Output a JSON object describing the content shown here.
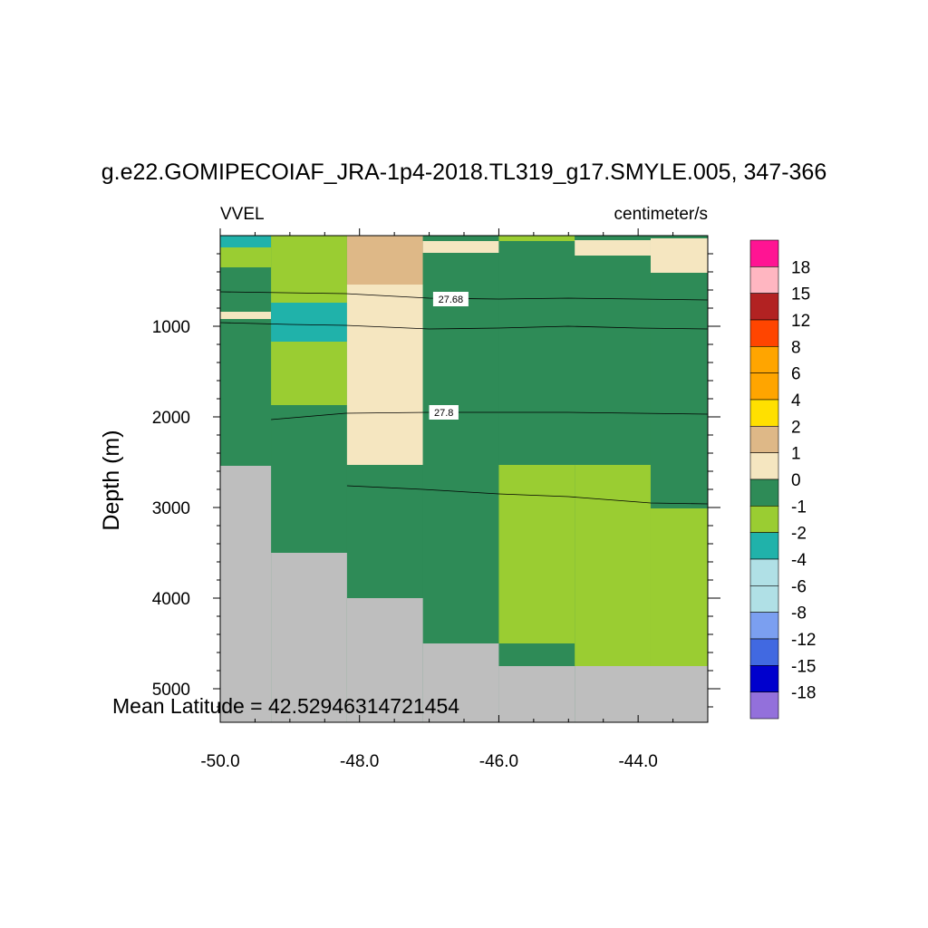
{
  "chart_data": {
    "type": "heatmap",
    "title": "g.e22.GOMIPECOIAF_JRA-1p4-2018.TL319_g17.SMYLE.005, 347-366",
    "left_label": "VVEL",
    "right_label": "centimeter/s",
    "xlabel": "",
    "ylabel": "Depth (m)",
    "xlim": [
      -50.0,
      -43.0
    ],
    "ylim": [
      5370,
      0
    ],
    "x_ticks": [
      "-50.0",
      "-48.0",
      "-46.0",
      "-44.0"
    ],
    "x_tick_values": [
      -50.0,
      -48.0,
      -46.0,
      -44.0
    ],
    "y_ticks": [
      "1000",
      "2000",
      "3000",
      "4000",
      "5000"
    ],
    "y_tick_values": [
      1000,
      2000,
      3000,
      4000,
      5000
    ],
    "colorbar": {
      "labels": [
        "18",
        "15",
        "12",
        "8",
        "6",
        "4",
        "2",
        "1",
        "0",
        "-1",
        "-2",
        "-4",
        "-6",
        "-8",
        "-12",
        "-15",
        "-18"
      ],
      "colors": [
        "#ff1493",
        "#ffb6c1",
        "#b22222",
        "#ff4500",
        "#ffa500",
        "#ffa500",
        "#ffe000",
        "#deb887",
        "#f5e6c0",
        "#2e8b57",
        "#9acd32",
        "#20b2aa",
        "#b0e0e6",
        "#b0e0e6",
        "#7b9ff0",
        "#4169e1",
        "#0000cd",
        "#9370db"
      ]
    },
    "land_color": "#bebebe",
    "cells": [
      {
        "x0": -50.0,
        "x1": -49.27,
        "d0": 0,
        "d1": 130,
        "v": "-2"
      },
      {
        "x0": -50.0,
        "x1": -49.27,
        "d0": 130,
        "d1": 350,
        "v": "-1"
      },
      {
        "x0": -50.0,
        "x1": -49.27,
        "d0": 350,
        "d1": 840,
        "v": "0"
      },
      {
        "x0": -50.0,
        "x1": -49.27,
        "d0": 840,
        "d1": 920,
        "v": "1"
      },
      {
        "x0": -50.0,
        "x1": -49.27,
        "d0": 920,
        "d1": 2540,
        "v": "0"
      },
      {
        "x0": -49.27,
        "x1": -48.18,
        "d0": 0,
        "d1": 740,
        "v": "-1"
      },
      {
        "x0": -49.27,
        "x1": -48.18,
        "d0": 740,
        "d1": 1170,
        "v": "-2"
      },
      {
        "x0": -49.27,
        "x1": -48.18,
        "d0": 1170,
        "d1": 1870,
        "v": "-1"
      },
      {
        "x0": -49.27,
        "x1": -48.18,
        "d0": 1870,
        "d1": 3500,
        "v": "0"
      },
      {
        "x0": -48.18,
        "x1": -47.09,
        "d0": 0,
        "d1": 540,
        "v": "2"
      },
      {
        "x0": -48.18,
        "x1": -47.09,
        "d0": 540,
        "d1": 2530,
        "v": "1"
      },
      {
        "x0": -48.18,
        "x1": -47.09,
        "d0": 2530,
        "d1": 4000,
        "v": "0"
      },
      {
        "x0": -47.09,
        "x1": -46.0,
        "d0": 0,
        "d1": 60,
        "v": "0"
      },
      {
        "x0": -47.09,
        "x1": -46.0,
        "d0": 60,
        "d1": 190,
        "v": "1"
      },
      {
        "x0": -47.09,
        "x1": -46.0,
        "d0": 190,
        "d1": 4500,
        "v": "0"
      },
      {
        "x0": -46.0,
        "x1": -44.91,
        "d0": 0,
        "d1": 60,
        "v": "-1"
      },
      {
        "x0": -46.0,
        "x1": -44.91,
        "d0": 60,
        "d1": 2530,
        "v": "0"
      },
      {
        "x0": -46.0,
        "x1": -44.91,
        "d0": 2530,
        "d1": 4500,
        "v": "-1"
      },
      {
        "x0": -46.0,
        "x1": -44.91,
        "d0": 4500,
        "d1": 4750,
        "v": "0"
      },
      {
        "x0": -44.91,
        "x1": -43.82,
        "d0": 0,
        "d1": 50,
        "v": "0"
      },
      {
        "x0": -44.91,
        "x1": -43.82,
        "d0": 50,
        "d1": 220,
        "v": "1"
      },
      {
        "x0": -44.91,
        "x1": -43.82,
        "d0": 220,
        "d1": 2530,
        "v": "0"
      },
      {
        "x0": -44.91,
        "x1": -43.82,
        "d0": 2530,
        "d1": 4750,
        "v": "-1"
      },
      {
        "x0": -43.82,
        "x1": -43.0,
        "d0": 0,
        "d1": 30,
        "v": "0"
      },
      {
        "x0": -43.82,
        "x1": -43.0,
        "d0": 30,
        "d1": 410,
        "v": "1"
      },
      {
        "x0": -43.82,
        "x1": -43.0,
        "d0": 410,
        "d1": 3010,
        "v": "0"
      },
      {
        "x0": -43.82,
        "x1": -43.0,
        "d0": 3010,
        "d1": 4750,
        "v": "-1"
      }
    ],
    "land": [
      {
        "x0": -50.0,
        "x1": -49.27,
        "d0": 2540,
        "d1": 5370
      },
      {
        "x0": -49.27,
        "x1": -48.18,
        "d0": 3500,
        "d1": 5370
      },
      {
        "x0": -48.18,
        "x1": -47.09,
        "d0": 4000,
        "d1": 5370
      },
      {
        "x0": -47.09,
        "x1": -46.0,
        "d0": 4500,
        "d1": 5370
      },
      {
        "x0": -46.0,
        "x1": -44.91,
        "d0": 4750,
        "d1": 5370
      },
      {
        "x0": -44.91,
        "x1": -43.0,
        "d0": 4750,
        "d1": 5370
      }
    ],
    "contours": [
      {
        "label": "",
        "points": [
          [
            -50.0,
            620
          ],
          [
            -48.2,
            640
          ],
          [
            -47.0,
            690
          ],
          [
            -46.0,
            700
          ],
          [
            -45.0,
            690
          ],
          [
            -44.0,
            700
          ],
          [
            -43.0,
            710
          ]
        ]
      },
      {
        "label": "",
        "points": [
          [
            -50.0,
            960
          ],
          [
            -49.0,
            980
          ],
          [
            -48.2,
            990
          ],
          [
            -47.0,
            1030
          ],
          [
            -46.0,
            1020
          ],
          [
            -45.0,
            1000
          ],
          [
            -44.0,
            1020
          ],
          [
            -43.0,
            1030
          ]
        ]
      },
      {
        "label": "",
        "points": [
          [
            -49.27,
            2030
          ],
          [
            -48.2,
            1960
          ],
          [
            -47.0,
            1950
          ],
          [
            -46.0,
            1950
          ],
          [
            -45.0,
            1950
          ],
          [
            -44.0,
            1960
          ],
          [
            -43.0,
            1970
          ]
        ]
      },
      {
        "label": "",
        "points": [
          [
            -48.18,
            2760
          ],
          [
            -47.09,
            2800
          ],
          [
            -46.0,
            2850
          ],
          [
            -45.0,
            2880
          ],
          [
            -43.82,
            2950
          ],
          [
            -43.0,
            2960
          ]
        ]
      }
    ],
    "contour_labels": [
      {
        "text": "27.68",
        "x": -46.69,
        "d": 700
      },
      {
        "text": "27.8",
        "x": -46.79,
        "d": 1950
      }
    ],
    "mean_latitude": "Mean Latitude = 42.52946314721454"
  }
}
